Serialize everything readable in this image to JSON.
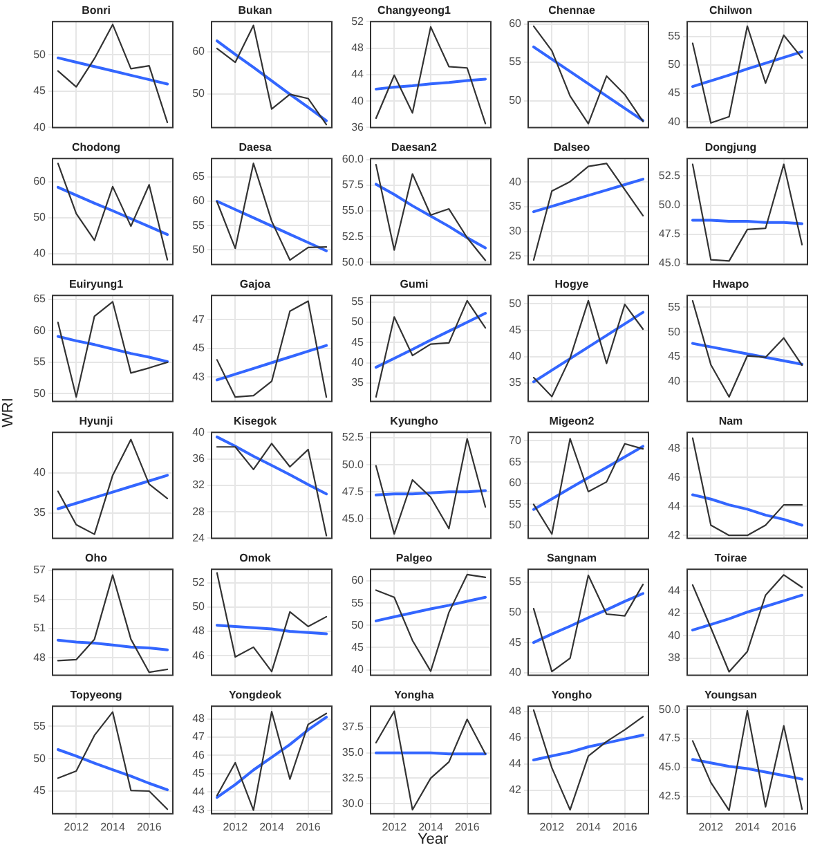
{
  "chart_data": [
    {
      "type": "line",
      "title": "Bonri",
      "x": [
        2011,
        2012,
        2013,
        2014,
        2015,
        2016,
        2017
      ],
      "xlim": [
        2010.7,
        2017.3
      ],
      "xticks": [
        2012,
        2014,
        2016
      ],
      "ylim": [
        40,
        54.6
      ],
      "yticks": [
        40,
        45,
        50
      ],
      "grid": true,
      "legend": false,
      "marker": "none",
      "line_style": "solid",
      "tick_labels": "y",
      "series": [
        {
          "color": "#333333",
          "values": [
            47.8,
            45.6,
            49.5,
            54.2,
            48.1,
            48.5,
            40.7
          ]
        },
        {
          "type": "line",
          "color": "#3366ff",
          "values": [
            49.6,
            49.0,
            48.4,
            47.8,
            47.2,
            46.6,
            46.0
          ]
        }
      ]
    },
    {
      "type": "line",
      "title": "Bukan",
      "x": [
        2011,
        2012,
        2013,
        2014,
        2015,
        2016,
        2017
      ],
      "xlim": [
        2010.7,
        2017.3
      ],
      "xticks": [
        2012,
        2014,
        2016
      ],
      "ylim": [
        42,
        67.2
      ],
      "yticks": [
        50,
        60
      ],
      "grid": true,
      "legend": false,
      "marker": "none",
      "line_style": "solid",
      "tick_labels": "y",
      "series": [
        {
          "color": "#333333",
          "values": [
            60.8,
            57.5,
            66.3,
            46.4,
            49.9,
            48.9,
            42.7
          ]
        },
        {
          "type": "line",
          "color": "#3366ff",
          "values": [
            62.6,
            59.4,
            56.3,
            53.1,
            49.9,
            46.8,
            43.6
          ]
        }
      ]
    },
    {
      "type": "line",
      "title": "Changyeong1",
      "x": [
        2011,
        2012,
        2013,
        2014,
        2015,
        2016,
        2017
      ],
      "xlim": [
        2010.7,
        2017.3
      ],
      "xticks": [
        2012,
        2014,
        2016
      ],
      "ylim": [
        36,
        52
      ],
      "yticks": [
        36,
        40,
        44,
        48,
        52
      ],
      "grid": true,
      "legend": false,
      "marker": "none",
      "line_style": "solid",
      "tick_labels": "y",
      "series": [
        {
          "color": "#333333",
          "values": [
            37.4,
            43.9,
            38.2,
            51.2,
            45.2,
            45.0,
            36.6
          ]
        },
        {
          "type": "line",
          "color": "#3366ff",
          "values": [
            41.8,
            42.1,
            42.3,
            42.6,
            42.8,
            43.1,
            43.3
          ]
        }
      ]
    },
    {
      "type": "line",
      "title": "Chennae",
      "x": [
        2011,
        2012,
        2013,
        2014,
        2015,
        2016,
        2017
      ],
      "xlim": [
        2010.7,
        2017.3
      ],
      "xticks": [
        2012,
        2014,
        2016
      ],
      "ylim": [
        46.5,
        60.3
      ],
      "yticks": [
        50,
        55,
        60
      ],
      "grid": true,
      "legend": false,
      "marker": "none",
      "line_style": "solid",
      "tick_labels": "y",
      "series": [
        {
          "color": "#333333",
          "values": [
            59.7,
            56.5,
            50.6,
            47.0,
            53.2,
            50.8,
            47.3
          ]
        },
        {
          "type": "line",
          "color": "#3366ff",
          "values": [
            57.0,
            55.4,
            53.8,
            52.2,
            50.6,
            49.0,
            47.4
          ]
        }
      ]
    },
    {
      "type": "line",
      "title": "Chilwon",
      "x": [
        2011,
        2012,
        2013,
        2014,
        2015,
        2016,
        2017
      ],
      "xlim": [
        2010.7,
        2017.3
      ],
      "xticks": [
        2012,
        2014,
        2016
      ],
      "ylim": [
        39,
        57.6
      ],
      "yticks": [
        40,
        45,
        50,
        55
      ],
      "grid": true,
      "legend": false,
      "marker": "none",
      "line_style": "solid",
      "tick_labels": "y",
      "series": [
        {
          "color": "#333333",
          "values": [
            53.8,
            39.8,
            40.9,
            56.8,
            46.8,
            55.2,
            51.2
          ]
        },
        {
          "type": "line",
          "color": "#3366ff",
          "values": [
            46.2,
            47.2,
            48.2,
            49.3,
            50.3,
            51.3,
            52.3
          ]
        }
      ]
    },
    {
      "type": "line",
      "title": "Chodong",
      "x": [
        2011,
        2012,
        2013,
        2014,
        2015,
        2016,
        2017
      ],
      "xlim": [
        2010.7,
        2017.3
      ],
      "xticks": [
        2012,
        2014,
        2016
      ],
      "ylim": [
        37,
        66.4
      ],
      "yticks": [
        40,
        50,
        60
      ],
      "grid": true,
      "legend": false,
      "marker": "none",
      "line_style": "solid",
      "tick_labels": "y",
      "series": [
        {
          "color": "#333333",
          "values": [
            65.0,
            51.1,
            43.7,
            58.6,
            47.6,
            59.1,
            38.3
          ]
        },
        {
          "type": "line",
          "color": "#3366ff",
          "values": [
            58.4,
            56.2,
            54.0,
            51.9,
            49.7,
            47.5,
            45.3
          ]
        }
      ]
    },
    {
      "type": "line",
      "title": "Daesa",
      "x": [
        2011,
        2012,
        2013,
        2014,
        2015,
        2016,
        2017
      ],
      "xlim": [
        2010.7,
        2017.3
      ],
      "xticks": [
        2012,
        2014,
        2016
      ],
      "ylim": [
        47,
        68.8
      ],
      "yticks": [
        50,
        55,
        60,
        65
      ],
      "grid": true,
      "legend": false,
      "marker": "none",
      "line_style": "solid",
      "tick_labels": "y",
      "series": [
        {
          "color": "#333333",
          "values": [
            59.9,
            50.3,
            67.8,
            55.9,
            47.9,
            50.5,
            50.6
          ]
        },
        {
          "type": "line",
          "color": "#3366ff",
          "values": [
            60.0,
            58.3,
            56.6,
            54.9,
            53.2,
            51.5,
            49.8
          ]
        }
      ]
    },
    {
      "type": "line",
      "title": "Daesan2",
      "x": [
        2011,
        2012,
        2013,
        2014,
        2015,
        2016,
        2017
      ],
      "xlim": [
        2010.7,
        2017.3
      ],
      "xticks": [
        2012,
        2014,
        2016
      ],
      "ylim": [
        49.8,
        60.1
      ],
      "yticks": [
        {
          "value": 50,
          "label": "50.0"
        },
        52.5,
        {
          "value": 55,
          "label": "55.0"
        },
        57.5,
        {
          "value": 60,
          "label": "60.0"
        }
      ],
      "grid": true,
      "legend": false,
      "marker": "none",
      "line_style": "solid",
      "tick_labels": "y",
      "series": [
        {
          "color": "#333333",
          "values": [
            59.5,
            51.2,
            58.6,
            54.6,
            55.2,
            52.4,
            50.2
          ]
        },
        {
          "type": "line",
          "color": "#3366ff",
          "values": [
            57.6,
            56.6,
            55.5,
            54.5,
            53.5,
            52.4,
            51.4
          ]
        }
      ]
    },
    {
      "type": "line",
      "title": "Dalseo",
      "x": [
        2011,
        2012,
        2013,
        2014,
        2015,
        2016,
        2017
      ],
      "xlim": [
        2010.7,
        2017.3
      ],
      "xticks": [
        2012,
        2014,
        2016
      ],
      "ylim": [
        23.3,
        44.8
      ],
      "yticks": [
        25,
        30,
        35,
        40
      ],
      "grid": true,
      "legend": false,
      "marker": "none",
      "line_style": "solid",
      "tick_labels": "y",
      "series": [
        {
          "color": "#333333",
          "values": [
            24.2,
            38.2,
            40.1,
            43.2,
            43.8,
            38.5,
            33.2
          ]
        },
        {
          "type": "line",
          "color": "#3366ff",
          "values": [
            34.0,
            35.1,
            36.2,
            37.3,
            38.4,
            39.5,
            40.6
          ]
        }
      ]
    },
    {
      "type": "line",
      "title": "Dongjung",
      "x": [
        2011,
        2012,
        2013,
        2014,
        2015,
        2016,
        2017
      ],
      "xlim": [
        2010.7,
        2017.3
      ],
      "xticks": [
        2012,
        2014,
        2016
      ],
      "ylim": [
        44.9,
        54
      ],
      "yticks": [
        {
          "value": 45,
          "label": "45.0"
        },
        47.5,
        {
          "value": 50,
          "label": "50.0"
        },
        52.5
      ],
      "grid": true,
      "legend": false,
      "marker": "none",
      "line_style": "solid",
      "tick_labels": "y",
      "series": [
        {
          "color": "#333333",
          "values": [
            53.5,
            45.3,
            45.2,
            47.9,
            48.0,
            53.5,
            46.6
          ]
        },
        {
          "type": "line",
          "color": "#3366ff",
          "values": [
            48.7,
            48.7,
            48.6,
            48.6,
            48.5,
            48.5,
            48.4
          ]
        }
      ]
    },
    {
      "type": "line",
      "title": "Euiryung1",
      "x": [
        2011,
        2012,
        2013,
        2014,
        2015,
        2016,
        2017
      ],
      "xlim": [
        2010.7,
        2017.3
      ],
      "xticks": [
        2012,
        2014,
        2016
      ],
      "ylim": [
        48.8,
        65.6
      ],
      "yticks": [
        50,
        55,
        60,
        65
      ],
      "grid": true,
      "legend": false,
      "marker": "none",
      "line_style": "solid",
      "tick_labels": "y",
      "series": [
        {
          "color": "#333333",
          "values": [
            61.3,
            49.5,
            62.3,
            64.6,
            53.3,
            54.1,
            55.0
          ]
        },
        {
          "type": "line",
          "color": "#3366ff",
          "values": [
            59.1,
            58.4,
            57.8,
            57.1,
            56.4,
            55.8,
            55.1
          ]
        }
      ]
    },
    {
      "type": "line",
      "title": "Gajoa",
      "x": [
        2011,
        2012,
        2013,
        2014,
        2015,
        2016,
        2017
      ],
      "xlim": [
        2010.7,
        2017.3
      ],
      "xticks": [
        2012,
        2014,
        2016
      ],
      "ylim": [
        41.3,
        48.7
      ],
      "yticks": [
        43,
        45,
        47
      ],
      "grid": true,
      "legend": false,
      "marker": "none",
      "line_style": "solid",
      "tick_labels": "y",
      "series": [
        {
          "color": "#333333",
          "values": [
            44.2,
            41.6,
            41.7,
            42.7,
            47.6,
            48.3,
            41.6
          ]
        },
        {
          "type": "line",
          "color": "#3366ff",
          "values": [
            42.8,
            43.2,
            43.6,
            44.0,
            44.4,
            44.8,
            45.2
          ]
        }
      ]
    },
    {
      "type": "line",
      "title": "Gumi",
      "x": [
        2011,
        2012,
        2013,
        2014,
        2015,
        2016,
        2017
      ],
      "xlim": [
        2010.7,
        2017.3
      ],
      "xticks": [
        2012,
        2014,
        2016
      ],
      "ylim": [
        30.5,
        56.6
      ],
      "yticks": [
        35,
        40,
        45,
        50,
        55
      ],
      "grid": true,
      "legend": false,
      "marker": "none",
      "line_style": "solid",
      "tick_labels": "y",
      "series": [
        {
          "color": "#333333",
          "values": [
            31.6,
            51.3,
            41.8,
            44.6,
            44.9,
            55.3,
            48.6
          ]
        },
        {
          "type": "line",
          "color": "#3366ff",
          "values": [
            38.9,
            41.1,
            43.3,
            45.6,
            47.8,
            50.0,
            52.2
          ]
        }
      ]
    },
    {
      "type": "line",
      "title": "Hogye",
      "x": [
        2011,
        2012,
        2013,
        2014,
        2015,
        2016,
        2017
      ],
      "xlim": [
        2010.7,
        2017.3
      ],
      "xticks": [
        2012,
        2014,
        2016
      ],
      "ylim": [
        31.5,
        51.6
      ],
      "yticks": [
        35,
        40,
        45,
        50
      ],
      "grid": true,
      "legend": false,
      "marker": "none",
      "line_style": "solid",
      "tick_labels": "y",
      "series": [
        {
          "color": "#333333",
          "values": [
            36.0,
            32.4,
            39.7,
            50.6,
            38.7,
            49.9,
            45.2
          ]
        },
        {
          "type": "line",
          "color": "#3366ff",
          "values": [
            35.2,
            37.4,
            39.6,
            41.8,
            44.0,
            46.2,
            48.4
          ]
        }
      ]
    },
    {
      "type": "line",
      "title": "Hwapo",
      "x": [
        2011,
        2012,
        2013,
        2014,
        2015,
        2016,
        2017
      ],
      "xlim": [
        2010.7,
        2017.3
      ],
      "xticks": [
        2012,
        2014,
        2016
      ],
      "ylim": [
        36,
        57.4
      ],
      "yticks": [
        40,
        45,
        50,
        55
      ],
      "grid": true,
      "legend": false,
      "marker": "none",
      "line_style": "solid",
      "tick_labels": "y",
      "series": [
        {
          "color": "#333333",
          "values": [
            56.3,
            43.4,
            36.9,
            45.2,
            44.9,
            48.8,
            43.3
          ]
        },
        {
          "type": "line",
          "color": "#3366ff",
          "values": [
            47.7,
            47.0,
            46.3,
            45.6,
            44.9,
            44.2,
            43.5
          ]
        }
      ]
    },
    {
      "type": "line",
      "title": "Hyunji",
      "ylabel": "WRI",
      "x": [
        2011,
        2012,
        2013,
        2014,
        2015,
        2016,
        2017
      ],
      "xlim": [
        2010.7,
        2017.3
      ],
      "xticks": [
        2012,
        2014,
        2016
      ],
      "ylim": [
        31.8,
        45.1
      ],
      "yticks": [
        35,
        40
      ],
      "grid": true,
      "legend": false,
      "marker": "none",
      "line_style": "solid",
      "tick_labels": "y",
      "series": [
        {
          "color": "#333333",
          "values": [
            37.7,
            33.5,
            32.3,
            39.7,
            44.2,
            38.6,
            36.8
          ]
        },
        {
          "type": "line",
          "color": "#3366ff",
          "values": [
            35.5,
            36.2,
            36.9,
            37.6,
            38.3,
            39.0,
            39.7
          ]
        }
      ]
    },
    {
      "type": "line",
      "title": "Kisegok",
      "x": [
        2011,
        2012,
        2013,
        2014,
        2015,
        2016,
        2017
      ],
      "xlim": [
        2010.7,
        2017.3
      ],
      "xticks": [
        2012,
        2014,
        2016
      ],
      "ylim": [
        24,
        40
      ],
      "yticks": [
        24,
        28,
        32,
        36,
        40
      ],
      "grid": true,
      "legend": false,
      "marker": "none",
      "line_style": "solid",
      "tick_labels": "y",
      "series": [
        {
          "color": "#333333",
          "values": [
            37.8,
            37.8,
            34.4,
            38.3,
            34.8,
            37.4,
            24.4
          ]
        },
        {
          "type": "line",
          "color": "#3366ff",
          "values": [
            39.3,
            37.9,
            36.4,
            35.0,
            33.6,
            32.1,
            30.7
          ]
        }
      ]
    },
    {
      "type": "line",
      "title": "Kyungho",
      "x": [
        2011,
        2012,
        2013,
        2014,
        2015,
        2016,
        2017
      ],
      "xlim": [
        2010.7,
        2017.3
      ],
      "xticks": [
        2012,
        2014,
        2016
      ],
      "ylim": [
        43.2,
        53
      ],
      "yticks": [
        {
          "value": 45,
          "label": "45.0"
        },
        47.5,
        {
          "value": 50,
          "label": "50.0"
        },
        52.5
      ],
      "grid": true,
      "legend": false,
      "marker": "none",
      "line_style": "solid",
      "tick_labels": "y",
      "series": [
        {
          "color": "#333333",
          "values": [
            49.9,
            43.6,
            48.6,
            47.0,
            44.1,
            52.4,
            46.1
          ]
        },
        {
          "type": "line",
          "color": "#3366ff",
          "values": [
            47.2,
            47.3,
            47.3,
            47.4,
            47.5,
            47.5,
            47.6
          ]
        }
      ]
    },
    {
      "type": "line",
      "title": "Migeon2",
      "x": [
        2011,
        2012,
        2013,
        2014,
        2015,
        2016,
        2017
      ],
      "xlim": [
        2010.7,
        2017.3
      ],
      "xticks": [
        2012,
        2014,
        2016
      ],
      "ylim": [
        47,
        72
      ],
      "yticks": [
        50,
        55,
        60,
        65,
        70
      ],
      "grid": true,
      "legend": false,
      "marker": "none",
      "line_style": "solid",
      "tick_labels": "y",
      "series": [
        {
          "color": "#333333",
          "values": [
            55.0,
            48.0,
            70.5,
            58.0,
            60.3,
            69.3,
            68.1
          ]
        },
        {
          "type": "line",
          "color": "#3366ff",
          "values": [
            53.8,
            56.3,
            58.8,
            61.3,
            63.7,
            66.2,
            68.7
          ]
        }
      ]
    },
    {
      "type": "line",
      "title": "Nam",
      "x": [
        2011,
        2012,
        2013,
        2014,
        2015,
        2016,
        2017
      ],
      "xlim": [
        2010.7,
        2017.3
      ],
      "xticks": [
        2012,
        2014,
        2016
      ],
      "ylim": [
        41.8,
        49.1
      ],
      "yticks": [
        42,
        44,
        46,
        48
      ],
      "grid": true,
      "legend": false,
      "marker": "none",
      "line_style": "solid",
      "tick_labels": "y",
      "series": [
        {
          "color": "#333333",
          "values": [
            48.7,
            42.7,
            42.0,
            42.0,
            42.7,
            44.1,
            44.1
          ]
        },
        {
          "type": "line",
          "color": "#3366ff",
          "values": [
            44.8,
            44.5,
            44.1,
            43.8,
            43.4,
            43.1,
            42.7
          ]
        }
      ]
    },
    {
      "type": "line",
      "title": "Oho",
      "x": [
        2011,
        2012,
        2013,
        2014,
        2015,
        2016,
        2017
      ],
      "xlim": [
        2010.7,
        2017.3
      ],
      "xticks": [
        2012,
        2014,
        2016
      ],
      "ylim": [
        46.2,
        57.1
      ],
      "yticks": [
        48,
        51,
        54,
        57
      ],
      "grid": true,
      "legend": false,
      "marker": "none",
      "line_style": "solid",
      "tick_labels": "y",
      "series": [
        {
          "color": "#333333",
          "values": [
            47.7,
            47.8,
            49.9,
            56.5,
            49.9,
            46.5,
            46.8
          ]
        },
        {
          "type": "line",
          "color": "#3366ff",
          "values": [
            49.8,
            49.6,
            49.5,
            49.3,
            49.1,
            49.0,
            48.8
          ]
        }
      ]
    },
    {
      "type": "line",
      "title": "Omok",
      "x": [
        2011,
        2012,
        2013,
        2014,
        2015,
        2016,
        2017
      ],
      "xlim": [
        2010.7,
        2017.3
      ],
      "xticks": [
        2012,
        2014,
        2016
      ],
      "ylim": [
        44.4,
        53.1
      ],
      "yticks": [
        46,
        48,
        50,
        52
      ],
      "grid": true,
      "legend": false,
      "marker": "none",
      "line_style": "solid",
      "tick_labels": "y",
      "series": [
        {
          "color": "#333333",
          "values": [
            52.8,
            45.9,
            46.7,
            44.7,
            49.6,
            48.4,
            49.2
          ]
        },
        {
          "type": "line",
          "color": "#3366ff",
          "values": [
            48.5,
            48.4,
            48.3,
            48.2,
            48.0,
            47.9,
            47.8
          ]
        }
      ]
    },
    {
      "type": "line",
      "title": "Palgeo",
      "x": [
        2011,
        2012,
        2013,
        2014,
        2015,
        2016,
        2017
      ],
      "xlim": [
        2010.7,
        2017.3
      ],
      "xticks": [
        2012,
        2014,
        2016
      ],
      "ylim": [
        38.8,
        62.6
      ],
      "yticks": [
        40,
        45,
        50,
        55,
        60
      ],
      "grid": true,
      "legend": false,
      "marker": "none",
      "line_style": "solid",
      "tick_labels": "y",
      "series": [
        {
          "color": "#333333",
          "values": [
            57.9,
            56.3,
            46.6,
            39.7,
            52.9,
            61.4,
            60.8
          ]
        },
        {
          "type": "line",
          "color": "#3366ff",
          "values": [
            51.0,
            51.9,
            52.8,
            53.7,
            54.5,
            55.4,
            56.3
          ]
        }
      ]
    },
    {
      "type": "line",
      "title": "Sangnam",
      "x": [
        2011,
        2012,
        2013,
        2014,
        2015,
        2016,
        2017
      ],
      "xlim": [
        2010.7,
        2017.3
      ],
      "xticks": [
        2012,
        2014,
        2016
      ],
      "ylim": [
        39.6,
        57.1
      ],
      "yticks": [
        40,
        45,
        50,
        55
      ],
      "grid": true,
      "legend": false,
      "marker": "none",
      "line_style": "solid",
      "tick_labels": "y",
      "series": [
        {
          "color": "#333333",
          "values": [
            50.6,
            40.2,
            42.4,
            56.1,
            49.7,
            49.4,
            54.6
          ]
        },
        {
          "type": "line",
          "color": "#3366ff",
          "values": [
            45.0,
            46.4,
            47.7,
            49.1,
            50.4,
            51.8,
            53.1
          ]
        }
      ]
    },
    {
      "type": "line",
      "title": "Toirae",
      "x": [
        2011,
        2012,
        2013,
        2014,
        2015,
        2016,
        2017
      ],
      "xlim": [
        2010.7,
        2017.3
      ],
      "xticks": [
        2012,
        2014,
        2016
      ],
      "ylim": [
        36.5,
        45.9
      ],
      "yticks": [
        38,
        40,
        42,
        44
      ],
      "grid": true,
      "legend": false,
      "marker": "none",
      "line_style": "solid",
      "tick_labels": "y",
      "series": [
        {
          "color": "#333333",
          "values": [
            44.5,
            40.7,
            36.8,
            38.6,
            43.6,
            45.4,
            44.3
          ]
        },
        {
          "type": "line",
          "color": "#3366ff",
          "values": [
            40.5,
            41.0,
            41.5,
            42.1,
            42.6,
            43.1,
            43.6
          ]
        }
      ]
    },
    {
      "type": "line",
      "title": "Topyeong",
      "x": [
        2011,
        2012,
        2013,
        2014,
        2015,
        2016,
        2017
      ],
      "xlim": [
        2010.7,
        2017.3
      ],
      "xticks": [
        2012,
        2014,
        2016
      ],
      "ylim": [
        41.5,
        58.1
      ],
      "yticks": [
        45,
        50,
        55
      ],
      "grid": true,
      "legend": false,
      "marker": "none",
      "line_style": "solid",
      "series": [
        {
          "color": "#333333",
          "values": [
            47.0,
            48.1,
            53.6,
            57.2,
            45.1,
            45.0,
            42.2
          ]
        },
        {
          "type": "line",
          "color": "#3366ff",
          "values": [
            51.4,
            50.4,
            49.3,
            48.3,
            47.3,
            46.2,
            45.2
          ]
        }
      ]
    },
    {
      "type": "line",
      "title": "Yongdeok",
      "x": [
        2011,
        2012,
        2013,
        2014,
        2015,
        2016,
        2017
      ],
      "xlim": [
        2010.7,
        2017.3
      ],
      "xticks": [
        2012,
        2014,
        2016
      ],
      "ylim": [
        42.8,
        48.7
      ],
      "yticks": [
        43,
        44,
        45,
        46,
        47,
        48
      ],
      "grid": true,
      "legend": false,
      "marker": "none",
      "line_style": "solid",
      "series": [
        {
          "color": "#333333",
          "values": [
            43.8,
            45.6,
            43.0,
            48.4,
            44.7,
            47.7,
            48.3
          ]
        },
        {
          "type": "line",
          "color": "#3366ff",
          "values": [
            43.7,
            44.4,
            45.2,
            45.9,
            46.6,
            47.4,
            48.1
          ]
        }
      ]
    },
    {
      "type": "line",
      "title": "Yongha",
      "xlabel": "Year",
      "x": [
        2011,
        2012,
        2013,
        2014,
        2015,
        2016,
        2017
      ],
      "xlim": [
        2010.7,
        2017.3
      ],
      "xticks": [
        2012,
        2014,
        2016
      ],
      "ylim": [
        29,
        39.6
      ],
      "yticks": [
        {
          "value": 30,
          "label": "30.0"
        },
        32.5,
        {
          "value": 35,
          "label": "35.0"
        },
        37.5
      ],
      "grid": true,
      "legend": false,
      "marker": "none",
      "line_style": "solid",
      "series": [
        {
          "color": "#333333",
          "values": [
            36.0,
            39.1,
            29.4,
            32.5,
            34.1,
            38.3,
            34.9
          ]
        },
        {
          "type": "line",
          "color": "#3366ff",
          "values": [
            35.0,
            35.0,
            35.0,
            35.0,
            34.9,
            34.9,
            34.9
          ]
        }
      ]
    },
    {
      "type": "line",
      "title": "Yongho",
      "x": [
        2011,
        2012,
        2013,
        2014,
        2015,
        2016,
        2017
      ],
      "xlim": [
        2010.7,
        2017.3
      ],
      "xticks": [
        2012,
        2014,
        2016
      ],
      "ylim": [
        40.2,
        48.4
      ],
      "yticks": [
        42,
        44,
        46,
        48
      ],
      "grid": true,
      "legend": false,
      "marker": "none",
      "line_style": "solid",
      "series": [
        {
          "color": "#333333",
          "values": [
            48.1,
            43.7,
            40.5,
            44.6,
            45.7,
            46.6,
            47.6
          ]
        },
        {
          "type": "line",
          "color": "#3366ff",
          "values": [
            44.3,
            44.6,
            44.9,
            45.3,
            45.6,
            45.9,
            46.2
          ]
        }
      ]
    },
    {
      "type": "line",
      "title": "Youngsan",
      "x": [
        2011,
        2012,
        2013,
        2014,
        2015,
        2016,
        2017
      ],
      "xlim": [
        2010.7,
        2017.3
      ],
      "xticks": [
        2012,
        2014,
        2016
      ],
      "ylim": [
        41,
        50.3
      ],
      "yticks": [
        42.5,
        {
          "value": 45,
          "label": "45.0"
        },
        47.5,
        {
          "value": 50,
          "label": "50.0"
        }
      ],
      "grid": true,
      "legend": false,
      "marker": "none",
      "line_style": "solid",
      "series": [
        {
          "color": "#333333",
          "values": [
            47.3,
            43.7,
            41.3,
            49.9,
            41.6,
            48.6,
            41.4
          ]
        },
        {
          "type": "line",
          "color": "#3366ff",
          "values": [
            45.7,
            45.4,
            45.1,
            44.9,
            44.6,
            44.3,
            44.0
          ]
        }
      ]
    }
  ]
}
